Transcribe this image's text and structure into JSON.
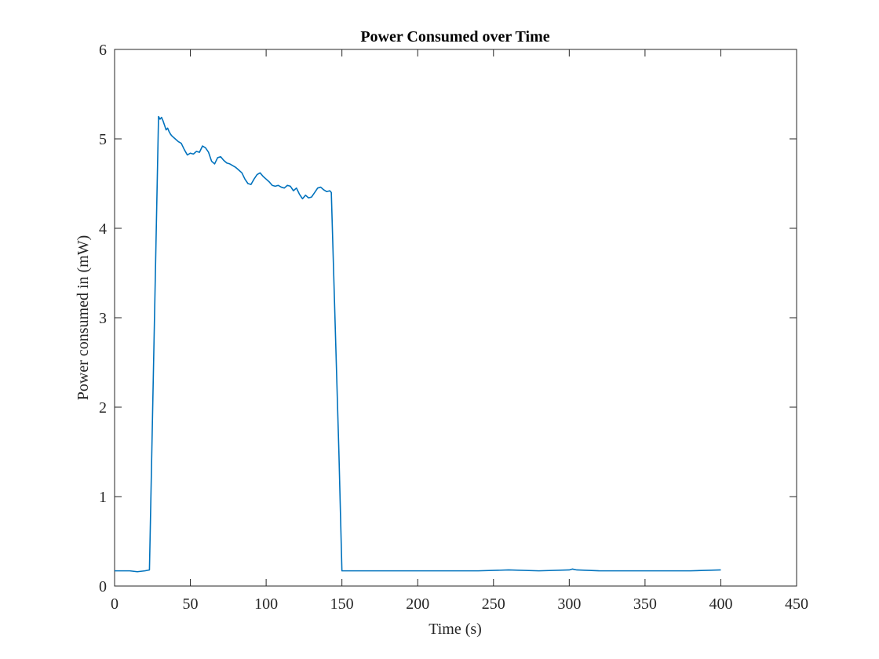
{
  "chart_data": {
    "type": "line",
    "title": "Power Consumed over Time",
    "xlabel": "Time (s)",
    "ylabel": "Power consumed in (mW)",
    "xlim": [
      0,
      450
    ],
    "ylim": [
      0,
      6
    ],
    "xticks": [
      0,
      50,
      100,
      150,
      200,
      250,
      300,
      350,
      400,
      450
    ],
    "yticks": [
      0,
      1,
      2,
      3,
      4,
      5,
      6
    ],
    "grid": false,
    "series": [
      {
        "color": "#0072BD",
        "x": [
          0,
          5,
          10,
          15,
          20,
          23,
          29,
          30,
          31,
          32,
          33,
          34,
          35,
          36,
          37,
          38,
          40,
          42,
          44,
          46,
          48,
          50,
          52,
          54,
          56,
          58,
          60,
          62,
          64,
          66,
          68,
          70,
          72,
          74,
          76,
          78,
          80,
          82,
          84,
          86,
          88,
          90,
          92,
          94,
          96,
          98,
          100,
          102,
          104,
          106,
          108,
          110,
          112,
          114,
          116,
          118,
          120,
          122,
          124,
          126,
          128,
          130,
          132,
          134,
          136,
          138,
          140,
          142,
          143,
          148,
          150,
          160,
          180,
          200,
          220,
          240,
          260,
          280,
          300,
          302,
          305,
          320,
          340,
          360,
          380,
          400
        ],
        "y": [
          0.17,
          0.17,
          0.17,
          0.16,
          0.17,
          0.18,
          5.25,
          5.22,
          5.24,
          5.2,
          5.15,
          5.1,
          5.12,
          5.08,
          5.05,
          5.03,
          5.0,
          4.97,
          4.95,
          4.88,
          4.82,
          4.84,
          4.83,
          4.86,
          4.85,
          4.92,
          4.9,
          4.85,
          4.75,
          4.72,
          4.79,
          4.8,
          4.76,
          4.73,
          4.72,
          4.7,
          4.68,
          4.65,
          4.62,
          4.55,
          4.5,
          4.49,
          4.55,
          4.6,
          4.62,
          4.58,
          4.55,
          4.52,
          4.48,
          4.47,
          4.48,
          4.46,
          4.45,
          4.48,
          4.47,
          4.42,
          4.45,
          4.38,
          4.33,
          4.37,
          4.34,
          4.35,
          4.4,
          4.45,
          4.46,
          4.43,
          4.41,
          4.42,
          4.4,
          1.5,
          0.17,
          0.17,
          0.17,
          0.17,
          0.17,
          0.17,
          0.18,
          0.17,
          0.18,
          0.19,
          0.18,
          0.17,
          0.17,
          0.17,
          0.17,
          0.18
        ]
      }
    ]
  }
}
